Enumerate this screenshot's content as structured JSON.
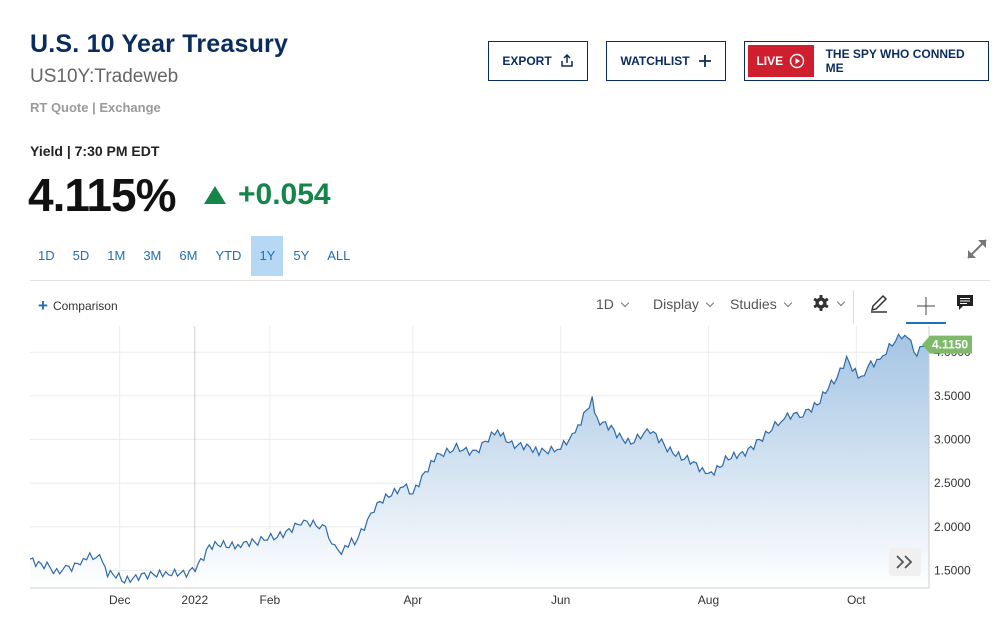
{
  "header": {
    "title": "U.S. 10 Year Treasury",
    "symbol": "US10Y:Tradeweb",
    "quote_source": "RT Quote | Exchange"
  },
  "actions": {
    "export_label": "EXPORT",
    "watchlist_label": "WATCHLIST",
    "live_badge": "LIVE",
    "live_title": "THE SPY WHO CONNED ME"
  },
  "quote": {
    "yield_label": "Yield | 7:30 PM EDT",
    "price": "4.115%",
    "change": "+0.054"
  },
  "ranges": [
    "1D",
    "5D",
    "1M",
    "3M",
    "6M",
    "YTD",
    "1Y",
    "5Y",
    "ALL"
  ],
  "active_range": "1Y",
  "toolbar": {
    "comparison_label": "Comparison",
    "period_label": "1D",
    "display_label": "Display",
    "studies_label": "Studies"
  },
  "colors": {
    "brand": "#0b2c5f",
    "accent": "#1f6fb5",
    "up": "#16854a",
    "live": "#cf1f2e",
    "line": "#2d6aa8",
    "last_price": "#7fba6b"
  },
  "chart_data": {
    "type": "area",
    "ylim": [
      1.3,
      4.3
    ],
    "yticks": [
      "1.5000",
      "2.0000",
      "2.5000",
      "3.0000",
      "3.5000",
      "4.0000"
    ],
    "xticks": [
      "Dec",
      "2022",
      "Feb",
      "Apr",
      "Jun",
      "Aug",
      "Oct"
    ],
    "last_value_label": "4.1150",
    "series": [
      {
        "x": [
          "2021-10-25",
          "2021-11-01",
          "2021-11-05",
          "2021-11-10",
          "2021-11-16",
          "2021-11-24",
          "2021-11-26",
          "2021-12-03",
          "2021-12-10",
          "2021-12-20",
          "2021-12-31",
          "2022-01-07",
          "2022-01-14",
          "2022-01-20",
          "2022-01-27",
          "2022-02-04",
          "2022-02-15",
          "2022-02-24",
          "2022-03-01",
          "2022-03-04",
          "2022-03-08",
          "2022-03-16",
          "2022-03-28",
          "2022-04-01",
          "2022-04-11",
          "2022-04-19",
          "2022-04-27",
          "2022-05-06",
          "2022-05-13",
          "2022-05-23",
          "2022-06-01",
          "2022-06-07",
          "2022-06-14",
          "2022-06-16",
          "2022-06-23",
          "2022-06-30",
          "2022-07-08",
          "2022-07-15",
          "2022-07-22",
          "2022-08-01",
          "2022-08-08",
          "2022-08-15",
          "2022-08-22",
          "2022-08-31",
          "2022-09-09",
          "2022-09-16",
          "2022-09-23",
          "2022-09-27",
          "2022-10-03",
          "2022-10-07",
          "2022-10-12",
          "2022-10-21",
          "2022-10-26",
          "2022-10-31"
        ],
        "y": [
          1.63,
          1.58,
          1.45,
          1.55,
          1.62,
          1.64,
          1.48,
          1.36,
          1.48,
          1.42,
          1.51,
          1.77,
          1.77,
          1.83,
          1.8,
          1.92,
          2.04,
          1.96,
          1.72,
          1.75,
          1.85,
          2.19,
          2.5,
          2.39,
          2.79,
          2.94,
          2.82,
          3.13,
          2.93,
          2.85,
          2.94,
          3.04,
          3.48,
          3.2,
          3.09,
          2.98,
          3.08,
          2.93,
          2.77,
          2.6,
          2.78,
          2.8,
          3.02,
          3.2,
          3.32,
          3.45,
          3.69,
          3.95,
          3.65,
          3.89,
          3.95,
          4.22,
          4.02,
          4.11
        ]
      }
    ]
  }
}
